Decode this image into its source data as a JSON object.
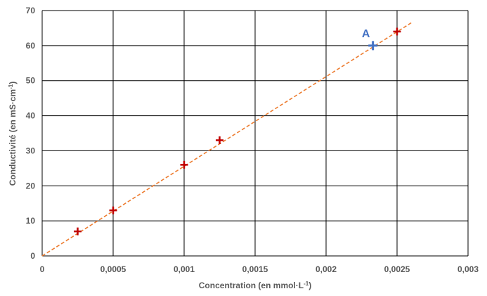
{
  "chart_data": {
    "type": "scatter",
    "xlabel": "Concentration (en mmol·L",
    "xlabel_sup": "-1",
    "xlabel_end": ")",
    "ylabel": "Conductivité (en mS·cm",
    "ylabel_sup": "-1",
    "ylabel_end": ")",
    "xlim": [
      0,
      0.003
    ],
    "ylim": [
      0,
      70
    ],
    "x_ticks": [
      {
        "value": 0,
        "label": "0"
      },
      {
        "value": 0.0005,
        "label": "0,0005"
      },
      {
        "value": 0.001,
        "label": "0,001"
      },
      {
        "value": 0.0015,
        "label": "0,0015"
      },
      {
        "value": 0.002,
        "label": "0,002"
      },
      {
        "value": 0.0025,
        "label": "0,0025"
      },
      {
        "value": 0.003,
        "label": "0,003"
      }
    ],
    "y_ticks": [
      {
        "value": 0,
        "label": "0"
      },
      {
        "value": 10,
        "label": "10"
      },
      {
        "value": 20,
        "label": "20"
      },
      {
        "value": 30,
        "label": "30"
      },
      {
        "value": 40,
        "label": "40"
      },
      {
        "value": 50,
        "label": "50"
      },
      {
        "value": 60,
        "label": "60"
      },
      {
        "value": 70,
        "label": "70"
      }
    ],
    "grid": true,
    "series": [
      {
        "marker": "plus",
        "color": "#c00000",
        "points": [
          {
            "x": 0.00025,
            "y": 7
          },
          {
            "x": 0.0005,
            "y": 13
          },
          {
            "x": 0.001,
            "y": 26
          },
          {
            "x": 0.00125,
            "y": 33
          },
          {
            "x": 0.0025,
            "y": 64
          }
        ]
      }
    ],
    "annotation_point": {
      "label": "A",
      "x": 0.00233,
      "y": 60,
      "color": "#4472c4"
    },
    "trendline": {
      "type": "linear",
      "color": "#ed7d31",
      "style": "dashed",
      "x_start": 0,
      "y_start": 0,
      "x_end": 0.0026,
      "y_end": 66.5
    }
  }
}
